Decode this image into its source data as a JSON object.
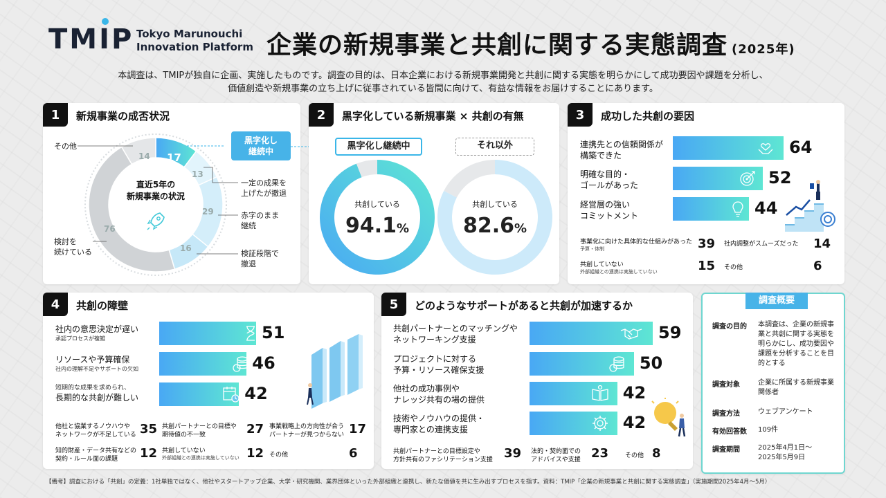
{
  "header": {
    "logo_mark": "TMIP",
    "logo_line1": "Tokyo Marunouchi",
    "logo_line2": "Innovation Platform",
    "title": "企業の新規事業と共創に関する実態調査",
    "year": "(2025年)",
    "intro_line1": "本調査は、TMIPが独自に企画、実施したものです。調査の目的は、日本企業における新規事業開発と共創に関する実態を明らかにして成功要因や課題を分析し、",
    "intro_line2": "価値創造や新規事業の立ち上げに従事されている皆間に向けて、有益な情報をお届けすることにあります。"
  },
  "colors": {
    "accent_start": "#49a8f4",
    "accent_end": "#5ee6d3",
    "highlight": "#3ab6e8",
    "gray": "#cfd3d6"
  },
  "section1": {
    "number": "1",
    "title": "新規事業の成否状況",
    "center_line1": "直近5年の",
    "center_line2": "新規事業の状況",
    "callout_line1": "黒字化し",
    "callout_line2": "継続中",
    "labels": {
      "other": "その他",
      "results": [
        "一定の成果を",
        "上げたが撤退"
      ],
      "deficit": [
        "赤字のまま",
        "継続"
      ],
      "verify": [
        "検証段階で",
        "撤退"
      ],
      "considering": [
        "検討を",
        "続けている"
      ]
    }
  },
  "section2": {
    "number": "2",
    "title": "黒字化している新規事業 × 共創の有無",
    "left_head": "黒字化し継続中",
    "right_head": "それ以外",
    "left_label": "共創している",
    "right_label": "共創している",
    "left_value": "94.1",
    "right_value": "82.6",
    "unit": "%"
  },
  "section3": {
    "number": "3",
    "title": "成功した共創の要因",
    "bars": [
      {
        "label1": "連携先との信頼関係が",
        "label2": "構築できた",
        "value": "64",
        "icon": "heart-hands-icon"
      },
      {
        "label1": "明確な目的・",
        "label2": "ゴールがあった",
        "value": "52",
        "icon": "target-icon"
      },
      {
        "label1": "経営層の強い",
        "label2": "コミットメント",
        "value": "44",
        "icon": "lightbulb-icon"
      }
    ],
    "small": [
      {
        "label": "事業化に向けた具体的な仕組みがあった",
        "sub": "予算・体制",
        "value": "39"
      },
      {
        "label": "社内調整がスムーズだった",
        "sub": "",
        "value": "14"
      },
      {
        "label": "共創していない",
        "sub": "外部組織との連携は実施していない",
        "value": "15"
      },
      {
        "label": "その他",
        "sub": "",
        "value": "6"
      }
    ]
  },
  "section4": {
    "number": "4",
    "title": "共創の障壁",
    "bars": [
      {
        "label1": "社内の意思決定が遅い",
        "sub": "承認プロセスが複雑",
        "value": "51",
        "icon": "hourglass-icon"
      },
      {
        "label1": "リソースや予算確保",
        "sub": "社内の理解不足やサポートの欠如",
        "value": "46",
        "icon": "coins-icon"
      },
      {
        "label1": "長期的な共創が難しい",
        "pre": "短期的な成果を求められ、",
        "value": "42",
        "icon": "calendar-clock-icon"
      }
    ],
    "small": [
      {
        "label1": "他社と協業するノウハウや",
        "label2": "ネットワークが不足している",
        "value": "35"
      },
      {
        "label1": "共創パートナーとの目標や",
        "label2": "期待値の不一致",
        "value": "27"
      },
      {
        "label1": "事業戦略上の方向性が合う",
        "label2": "パートナーが見つからない",
        "value": "17"
      },
      {
        "label1": "知的財産・データ共有などの",
        "label2": "契約・ルール面の課題",
        "value": "12"
      },
      {
        "label1": "共創していない",
        "label2": "外部組織との連携は実施していない",
        "value": "12"
      },
      {
        "label1": "その他",
        "label2": "",
        "value": "6"
      }
    ]
  },
  "section5": {
    "number": "5",
    "title": "どのようなサポートがあると共創が加速するか",
    "bars": [
      {
        "label1": "共創パートナーとのマッチングや",
        "label2": "ネットワーキング支援",
        "value": "59",
        "icon": "handshake-icon"
      },
      {
        "label1": "プロジェクトに対する",
        "label2": "予算・リソース確保支援",
        "value": "50",
        "icon": "coins-icon"
      },
      {
        "label1": "他社の成功事例や",
        "label2": "ナレッジ共有の場の提供",
        "value": "42",
        "icon": "book-icon"
      },
      {
        "label1": "技術やノウハウの提供・",
        "label2": "専門家との連携支援",
        "value": "42",
        "icon": "gear-icon"
      }
    ],
    "small": [
      {
        "label1": "共創パートナーとの目標設定や",
        "label2": "方針共有のファシリテーション支援",
        "value": "39"
      },
      {
        "label1": "法的・契約面での",
        "label2": "アドバイスや支援",
        "value": "23"
      },
      {
        "label1": "その他",
        "label2": "",
        "value": "8"
      }
    ]
  },
  "summary": {
    "title": "調査概要",
    "rows": [
      {
        "key": "調査の目的",
        "value": "本調査は、企業の新規事業と共創に関する実態を明らかにし、成功要因や課題を分析することを目的とする"
      },
      {
        "key": "調査対象",
        "value": "企業に所属する新規事業関係者"
      },
      {
        "key": "調査方法",
        "value": "ウェブアンケート"
      },
      {
        "key": "有効回答数",
        "value": "109件"
      },
      {
        "key": "調査期間",
        "value": "2025年4月1日～2025年5月9日"
      }
    ]
  },
  "footnote": "【備考】調査における「共創」の定義：1社単独ではなく、他社やスタートアップ企業、大学・研究機関、業界団体といった外部組織と連携し、新たな価値を共に生み出すプロセスを指す。資料：TMIP「企業の新規事業と共創に関する実態調査」（実施期間2025年4月～5月）",
  "chart_data": [
    {
      "type": "pie",
      "title": "新規事業の成否状況",
      "categories": [
        "黒字化し継続中",
        "一定の成果を上げたが撤退",
        "赤字のまま継続",
        "検証段階で撤退",
        "検討を続けている",
        "その他"
      ],
      "values": [
        17,
        13,
        29,
        16,
        76,
        14
      ]
    },
    {
      "type": "pie",
      "title": "黒字化し継続中",
      "categories": [
        "共創している",
        ""
      ],
      "values": [
        94.1,
        5.9
      ]
    },
    {
      "type": "pie",
      "title": "それ以外",
      "categories": [
        "共創している",
        ""
      ],
      "values": [
        82.6,
        17.4
      ]
    },
    {
      "type": "bar",
      "title": "成功した共創の要因",
      "categories": [
        "連携先との信頼関係が構築できた",
        "明確な目的・ゴールがあった",
        "経営層の強いコミットメント",
        "事業化に向けた具体的な仕組みがあった",
        "社内調整がスムーズだった",
        "共創していない",
        "その他"
      ],
      "values": [
        64,
        52,
        44,
        39,
        14,
        15,
        6
      ]
    },
    {
      "type": "bar",
      "title": "共創の障壁",
      "categories": [
        "社内の意思決定が遅い",
        "リソースや予算確保",
        "長期的な共創が難しい",
        "他社と協業するノウハウやネットワークが不足している",
        "共創パートナーとの目標や期待値の不一致",
        "事業戦略上の方向性が合うパートナーが見つからない",
        "知的財産・データ共有などの契約・ルール面の課題",
        "共創していない",
        "その他"
      ],
      "values": [
        51,
        46,
        42,
        35,
        27,
        17,
        12,
        12,
        6
      ]
    },
    {
      "type": "bar",
      "title": "どのようなサポートがあると共創が加速するか",
      "categories": [
        "共創パートナーとのマッチングやネットワーキング支援",
        "プロジェクトに対する予算・リソース確保支援",
        "他社の成功事例やナレッジ共有の場の提供",
        "技術やノウハウの提供・専門家との連携支援",
        "共創パートナーとの目標設定や方針共有のファシリテーション支援",
        "法的・契約面でのアドバイスや支援",
        "その他"
      ],
      "values": [
        59,
        50,
        42,
        42,
        39,
        23,
        8
      ]
    }
  ]
}
